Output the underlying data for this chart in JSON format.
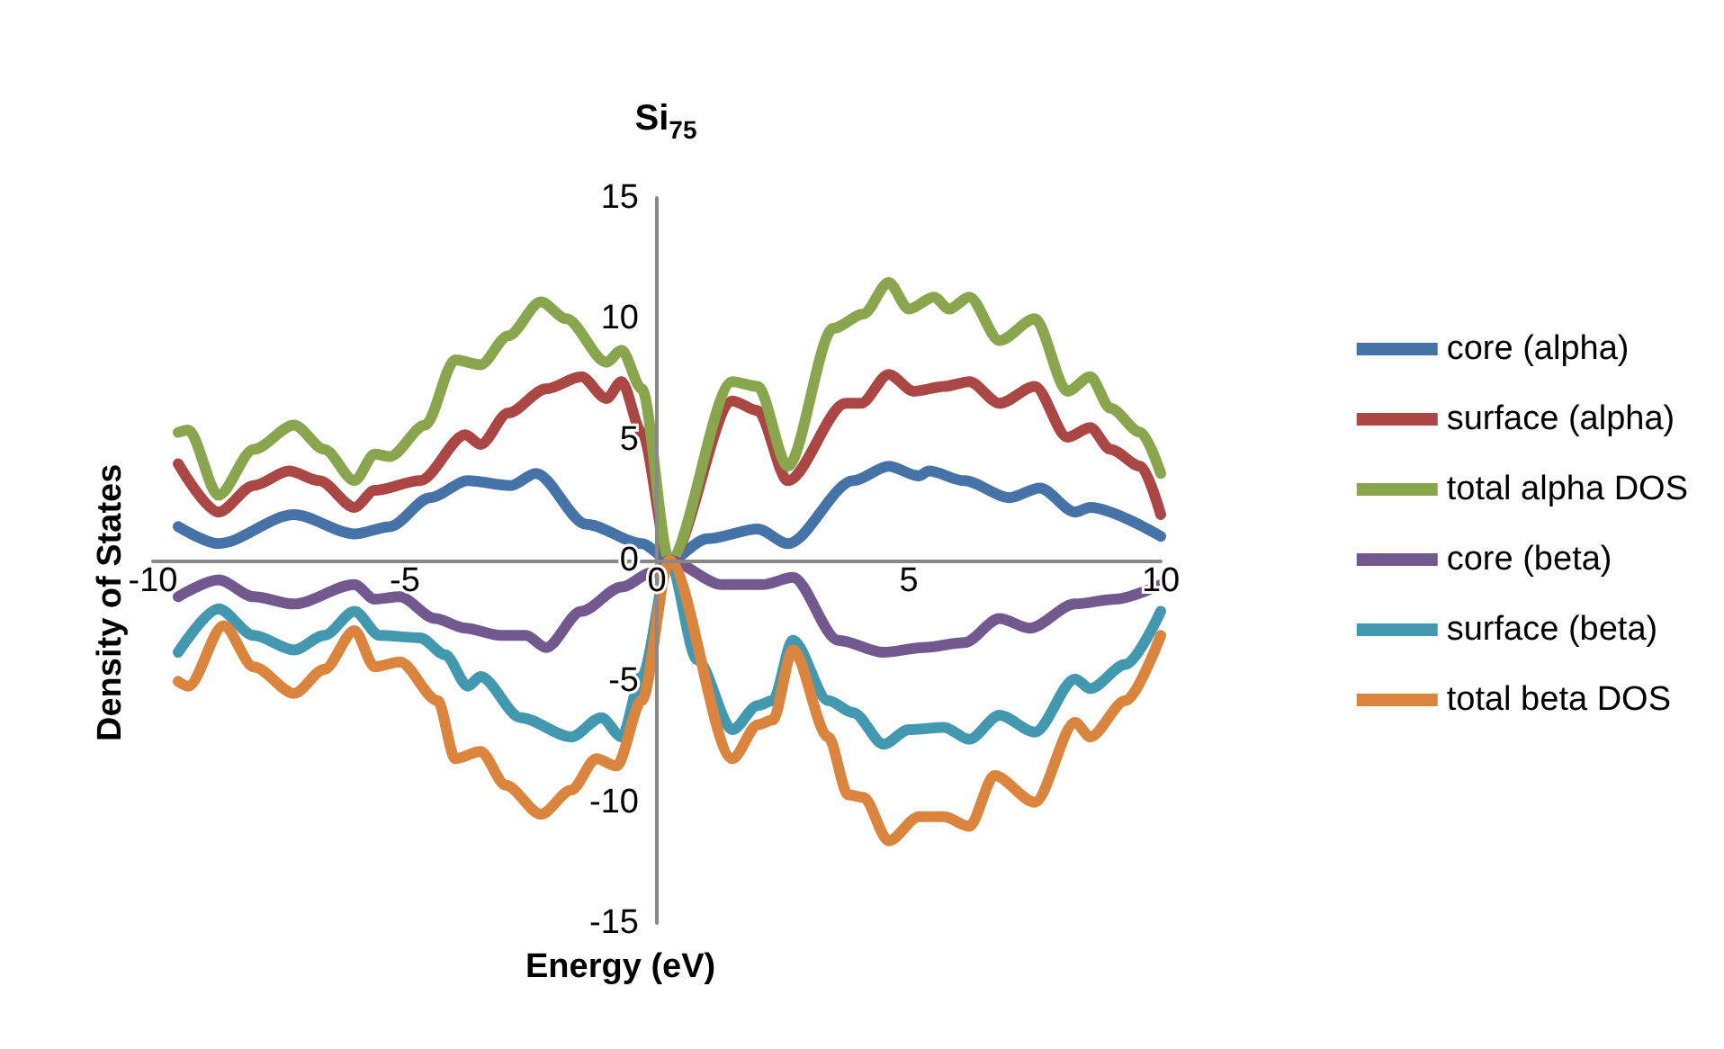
{
  "chart_data": {
    "type": "line",
    "title": "Si$_{75}$",
    "xlabel": "Energy (eV)",
    "ylabel": "Density of States",
    "xlim": [
      -10,
      10
    ],
    "xticks": [
      -10,
      -5,
      0,
      5,
      10
    ],
    "ylim": [
      -15,
      15
    ],
    "yticks": [
      -15,
      -10,
      -5,
      0,
      5,
      10,
      15
    ],
    "grid": false,
    "legend": "right",
    "marker": "none",
    "line_style": "solid",
    "series": [
      {
        "name": "core (alpha)",
        "color": "#4572a7",
        "x": [
          -9.5,
          -8.7,
          -7.2,
          -6.0,
          -5.3,
          -4.5,
          -3.75,
          -2.9,
          -2.4,
          -1.4,
          -0.3,
          0.25,
          1.0,
          2.0,
          2.6,
          3.9,
          4.6,
          5.2,
          5.4,
          6.1,
          7.0,
          7.6,
          8.3,
          8.6,
          10
        ],
        "values": [
          1.4,
          0.7,
          1.9,
          1.1,
          1.4,
          2.6,
          3.3,
          3.1,
          3.6,
          1.5,
          0.7,
          0,
          0.9,
          1.3,
          0.7,
          3.3,
          3.9,
          3.5,
          3.7,
          3.3,
          2.6,
          3.0,
          2.0,
          2.2,
          1.0
        ]
      },
      {
        "name": "surface (alpha)",
        "color": "#aa4643",
        "x": [
          -9.5,
          -8.7,
          -8.0,
          -7.3,
          -6.7,
          -6.0,
          -5.6,
          -4.7,
          -3.8,
          -3.5,
          -2.95,
          -2.2,
          -1.5,
          -1.0,
          -0.7,
          -0.3,
          0.25,
          1.5,
          2.0,
          2.6,
          3.75,
          4.05,
          4.6,
          5.1,
          5.7,
          6.2,
          6.8,
          7.5,
          8.15,
          8.6,
          9.0,
          9.6,
          10
        ],
        "values": [
          4.0,
          2.0,
          3.1,
          3.7,
          3.3,
          2.2,
          2.9,
          3.3,
          5.2,
          4.8,
          6.1,
          7.1,
          7.6,
          6.7,
          7.4,
          5.3,
          0,
          6.6,
          6.2,
          3.3,
          6.5,
          6.5,
          7.7,
          7.0,
          7.2,
          7.4,
          6.5,
          7.2,
          5.1,
          5.5,
          4.6,
          3.9,
          1.9
        ]
      },
      {
        "name": "total alpha DOS",
        "color": "#89a54e",
        "x": [
          -9.5,
          -9.3,
          -8.7,
          -8.0,
          -7.2,
          -6.6,
          -6.0,
          -5.6,
          -5.3,
          -4.6,
          -4.0,
          -3.5,
          -2.95,
          -2.3,
          -1.8,
          -1.0,
          -0.7,
          -0.3,
          0.25,
          1.5,
          2.0,
          2.6,
          3.5,
          4.1,
          4.6,
          5.0,
          5.5,
          5.8,
          6.2,
          6.8,
          7.5,
          8.15,
          8.6,
          9.0,
          9.6,
          10
        ],
        "values": [
          5.3,
          5.4,
          2.7,
          4.6,
          5.6,
          4.6,
          3.3,
          4.4,
          4.3,
          5.6,
          8.3,
          8.1,
          9.3,
          10.7,
          10.0,
          8.2,
          8.7,
          7.1,
          0,
          7.4,
          7.2,
          3.9,
          9.6,
          10.2,
          11.5,
          10.4,
          10.9,
          10.4,
          10.9,
          9.1,
          10.0,
          7.0,
          7.6,
          6.3,
          5.3,
          3.6
        ]
      },
      {
        "name": "core (beta)",
        "color": "#71588f",
        "x": [
          -9.5,
          -8.7,
          -8.0,
          -7.2,
          -6.0,
          -5.6,
          -5.1,
          -4.4,
          -3.8,
          -3.1,
          -2.6,
          -2.2,
          -1.5,
          -0.7,
          -0.1,
          0.25,
          1.3,
          2.1,
          2.7,
          3.6,
          4.5,
          5.3,
          6.1,
          6.8,
          7.4,
          8.3,
          9.1,
          10
        ],
        "values": [
          -1.5,
          -0.8,
          -1.5,
          -1.8,
          -1.0,
          -1.6,
          -1.5,
          -2.4,
          -2.8,
          -3.1,
          -3.1,
          -3.6,
          -2.1,
          -1.1,
          -0.5,
          0,
          -1.0,
          -1.0,
          -0.7,
          -3.3,
          -3.8,
          -3.6,
          -3.4,
          -2.4,
          -2.8,
          -1.8,
          -1.6,
          -1.0
        ]
      },
      {
        "name": "surface (beta)",
        "color": "#4198af",
        "x": [
          -9.5,
          -8.7,
          -8.0,
          -7.2,
          -6.6,
          -6.0,
          -5.5,
          -4.7,
          -4.2,
          -3.75,
          -3.5,
          -2.7,
          -1.7,
          -1.1,
          -0.7,
          -0.3,
          0.25,
          0.8,
          1.5,
          2.0,
          2.3,
          2.7,
          3.4,
          3.9,
          4.5,
          5.0,
          5.7,
          6.2,
          6.8,
          7.5,
          8.3,
          8.6,
          9.3,
          10
        ],
        "values": [
          -3.8,
          -2.0,
          -3.1,
          -3.7,
          -3.1,
          -2.1,
          -3.1,
          -3.2,
          -3.9,
          -5.2,
          -4.8,
          -6.5,
          -7.3,
          -6.5,
          -7.3,
          -4.8,
          0,
          -4.1,
          -7.0,
          -6.0,
          -5.8,
          -3.3,
          -5.8,
          -6.3,
          -7.6,
          -7.0,
          -6.9,
          -7.4,
          -6.4,
          -7.1,
          -4.9,
          -5.3,
          -4.3,
          -2.1
        ]
      },
      {
        "name": "total beta DOS",
        "color": "#db843d",
        "x": [
          -9.5,
          -9.3,
          -8.6,
          -8.0,
          -7.2,
          -6.6,
          -6.0,
          -5.6,
          -5.1,
          -4.35,
          -4.0,
          -3.5,
          -3.0,
          -2.3,
          -1.7,
          -1.2,
          -0.8,
          -0.3,
          0.25,
          1.5,
          2.0,
          2.3,
          2.7,
          3.4,
          3.8,
          4.1,
          4.6,
          5.2,
          5.7,
          6.2,
          6.7,
          7.5,
          8.3,
          8.6,
          9.3,
          10
        ],
        "values": [
          -5.0,
          -5.2,
          -2.7,
          -4.4,
          -5.5,
          -4.5,
          -2.9,
          -4.4,
          -4.2,
          -5.8,
          -8.2,
          -7.9,
          -9.3,
          -10.5,
          -9.5,
          -8.2,
          -8.5,
          -5.8,
          0,
          -8.2,
          -6.8,
          -6.6,
          -3.7,
          -7.3,
          -9.7,
          -9.8,
          -11.6,
          -10.6,
          -10.6,
          -11.0,
          -8.9,
          -10.0,
          -6.7,
          -7.3,
          -5.8,
          -3.1
        ]
      }
    ]
  }
}
